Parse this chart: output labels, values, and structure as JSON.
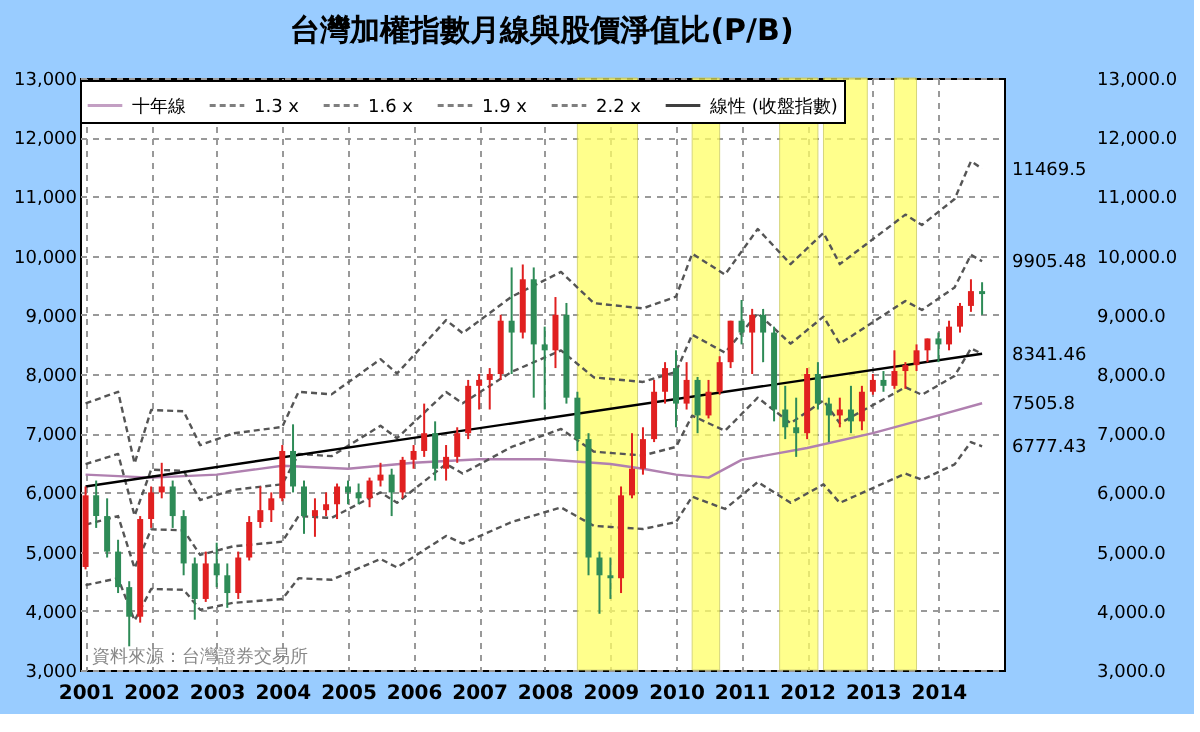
{
  "chart_data": {
    "type": "candlestick",
    "title": "台灣加權指數月線與股價淨值比(P/B)",
    "x": [
      "2001-01",
      "2001-03",
      "2001-05",
      "2001-07",
      "2001-09",
      "2001-11",
      "2002-01",
      "2002-03",
      "2002-05",
      "2002-07",
      "2002-09",
      "2002-11",
      "2003-01",
      "2003-03",
      "2003-05",
      "2003-07",
      "2003-09",
      "2003-11",
      "2004-01",
      "2004-03",
      "2004-05",
      "2004-07",
      "2004-09",
      "2004-11",
      "2005-01",
      "2005-03",
      "2005-05",
      "2005-07",
      "2005-09",
      "2005-11",
      "2006-01",
      "2006-03",
      "2006-05",
      "2006-07",
      "2006-09",
      "2006-11",
      "2007-01",
      "2007-03",
      "2007-05",
      "2007-07",
      "2007-09",
      "2007-11",
      "2008-01",
      "2008-03",
      "2008-05",
      "2008-07",
      "2008-09",
      "2008-11",
      "2009-01",
      "2009-03",
      "2009-05",
      "2009-07",
      "2009-09",
      "2009-11",
      "2010-01",
      "2010-03",
      "2010-05",
      "2010-07",
      "2010-09",
      "2010-11",
      "2011-01",
      "2011-03",
      "2011-05",
      "2011-07",
      "2011-09",
      "2011-11",
      "2012-01",
      "2012-03",
      "2012-05",
      "2012-07",
      "2012-09",
      "2012-11",
      "2013-01",
      "2013-03",
      "2013-05",
      "2013-07",
      "2013-09",
      "2013-11",
      "2014-01",
      "2014-03",
      "2014-05",
      "2014-07",
      "2014-09"
    ],
    "ohlc": [
      [
        4740,
        6100,
        4700,
        5950
      ],
      [
        5950,
        6200,
        5400,
        5600
      ],
      [
        5600,
        5900,
        4900,
        5000
      ],
      [
        5000,
        5200,
        4300,
        4400
      ],
      [
        4400,
        4500,
        3400,
        3900
      ],
      [
        3900,
        5600,
        3800,
        5550
      ],
      [
        5550,
        6100,
        5400,
        6000
      ],
      [
        6000,
        6500,
        5900,
        6100
      ],
      [
        6100,
        6200,
        5400,
        5600
      ],
      [
        5600,
        5700,
        4600,
        4800
      ],
      [
        4800,
        4900,
        3850,
        4200
      ],
      [
        4200,
        5000,
        4150,
        4800
      ],
      [
        4800,
        5150,
        4400,
        4600
      ],
      [
        4600,
        4800,
        4050,
        4300
      ],
      [
        4300,
        5000,
        4200,
        4900
      ],
      [
        4900,
        5600,
        4850,
        5500
      ],
      [
        5500,
        6100,
        5400,
        5700
      ],
      [
        5700,
        6000,
        5500,
        5900
      ],
      [
        5900,
        6800,
        5850,
        6700
      ],
      [
        6700,
        7150,
        6000,
        6100
      ],
      [
        6100,
        6200,
        5300,
        5600
      ],
      [
        5600,
        5900,
        5250,
        5700
      ],
      [
        5700,
        6000,
        5600,
        5800
      ],
      [
        5800,
        6150,
        5550,
        6100
      ],
      [
        6100,
        6200,
        5800,
        6000
      ],
      [
        6000,
        6150,
        5800,
        5900
      ],
      [
        5900,
        6250,
        5750,
        6200
      ],
      [
        6200,
        6500,
        6100,
        6300
      ],
      [
        6300,
        6400,
        5600,
        6000
      ],
      [
        6000,
        6600,
        5900,
        6550
      ],
      [
        6550,
        6800,
        6400,
        6700
      ],
      [
        6700,
        7500,
        6600,
        7000
      ],
      [
        7000,
        7200,
        6200,
        6400
      ],
      [
        6400,
        6800,
        6200,
        6600
      ],
      [
        6600,
        7100,
        6500,
        7000
      ],
      [
        7000,
        7900,
        6900,
        7800
      ],
      [
        7800,
        8000,
        7400,
        7900
      ],
      [
        7900,
        8100,
        7400,
        8000
      ],
      [
        8000,
        9000,
        7900,
        8900
      ],
      [
        8900,
        9800,
        8000,
        8700
      ],
      [
        8700,
        9850,
        8600,
        9600
      ],
      [
        9600,
        9800,
        7600,
        8500
      ],
      [
        8500,
        8800,
        7400,
        8400
      ],
      [
        8400,
        9300,
        8100,
        9000
      ],
      [
        9000,
        9200,
        7500,
        7600
      ],
      [
        7600,
        7700,
        6700,
        6900
      ],
      [
        6900,
        7000,
        4600,
        4900
      ],
      [
        4900,
        5000,
        3950,
        4600
      ],
      [
        4600,
        4900,
        4200,
        4550
      ],
      [
        4550,
        6100,
        4300,
        5950
      ],
      [
        5950,
        7000,
        5900,
        6400
      ],
      [
        6400,
        7100,
        6300,
        6900
      ],
      [
        6900,
        7900,
        6850,
        7700
      ],
      [
        7700,
        8200,
        7500,
        8100
      ],
      [
        8100,
        8400,
        7100,
        7500
      ],
      [
        7500,
        8200,
        7400,
        7900
      ],
      [
        7900,
        7950,
        7000,
        7300
      ],
      [
        7300,
        7900,
        7250,
        7700
      ],
      [
        7700,
        8300,
        7650,
        8200
      ],
      [
        8200,
        8900,
        8100,
        8900
      ],
      [
        8900,
        9250,
        8500,
        8700
      ],
      [
        8700,
        9100,
        8000,
        9000
      ],
      [
        9000,
        9100,
        8200,
        8700
      ],
      [
        8700,
        8800,
        7200,
        7400
      ],
      [
        7400,
        7800,
        6900,
        7100
      ],
      [
        7100,
        7600,
        6600,
        7000
      ],
      [
        7000,
        8100,
        6900,
        8000
      ],
      [
        8000,
        8200,
        7400,
        7500
      ],
      [
        7500,
        7600,
        6850,
        7300
      ],
      [
        7300,
        7600,
        7100,
        7400
      ],
      [
        7400,
        7800,
        7000,
        7200
      ],
      [
        7200,
        7800,
        7050,
        7700
      ],
      [
        7700,
        8000,
        7650,
        7900
      ],
      [
        7900,
        8050,
        7700,
        7800
      ],
      [
        7800,
        8400,
        7750,
        8050
      ],
      [
        8050,
        8200,
        7750,
        8150
      ],
      [
        8150,
        8500,
        8050,
        8400
      ],
      [
        8400,
        8600,
        8200,
        8600
      ],
      [
        8600,
        8700,
        8200,
        8500
      ],
      [
        8500,
        8900,
        8400,
        8800
      ],
      [
        8800,
        9200,
        8700,
        9150
      ],
      [
        9150,
        9600,
        9050,
        9400
      ],
      [
        9400,
        9550,
        9000,
        9350
      ]
    ],
    "series": [
      {
        "name": "十年線",
        "type": "line",
        "color": "#b080b0",
        "line_style": "solid",
        "x": [
          "2001-01",
          "2002-01",
          "2003-01",
          "2004-01",
          "2005-01",
          "2006-01",
          "2007-01",
          "2008-01",
          "2009-01",
          "2009-07",
          "2010-01",
          "2010-07",
          "2011-01",
          "2012-01",
          "2013-01",
          "2014-01",
          "2014-09"
        ],
        "values": [
          6300,
          6250,
          6300,
          6450,
          6400,
          6500,
          6560,
          6560,
          6480,
          6400,
          6300,
          6250,
          6550,
          6750,
          7000,
          7300,
          7505.8
        ]
      },
      {
        "name": "1.3 x",
        "type": "line",
        "color": "#555555",
        "line_style": "dashed",
        "x": [
          "2001-01",
          "2001-07",
          "2001-10",
          "2002-01",
          "2002-07",
          "2002-10",
          "2003-04",
          "2004-01",
          "2004-04",
          "2004-10",
          "2005-07",
          "2005-10",
          "2006-07",
          "2006-10",
          "2007-07",
          "2008-04",
          "2008-10",
          "2009-07",
          "2010-01",
          "2010-04",
          "2010-10",
          "2011-04",
          "2011-10",
          "2012-04",
          "2012-07",
          "2013-07",
          "2013-10",
          "2014-04",
          "2014-07",
          "2014-09"
        ],
        "values": [
          4433,
          4550,
          3835,
          4368,
          4355,
          4017,
          4134,
          4199,
          4550,
          4524,
          4875,
          4732,
          5265,
          5135,
          5499,
          5746,
          5434,
          5382,
          5499,
          5928,
          5720,
          6175,
          5824,
          6136,
          5824,
          6318,
          6214,
          6474,
          6851,
          6777.43
        ]
      },
      {
        "name": "1.6 x",
        "type": "line",
        "color": "#555555",
        "line_style": "dashed",
        "x": [
          "2001-01",
          "2001-07",
          "2001-10",
          "2002-01",
          "2002-07",
          "2002-10",
          "2003-04",
          "2004-01",
          "2004-04",
          "2004-10",
          "2005-07",
          "2005-10",
          "2006-07",
          "2006-10",
          "2007-07",
          "2008-04",
          "2008-10",
          "2009-07",
          "2010-01",
          "2010-04",
          "2010-10",
          "2011-04",
          "2011-10",
          "2012-04",
          "2012-07",
          "2013-07",
          "2013-10",
          "2014-04",
          "2014-07",
          "2014-09"
        ],
        "values": [
          5456,
          5600,
          4720,
          5376,
          5360,
          4944,
          5088,
          5168,
          5600,
          5568,
          6000,
          5824,
          6480,
          6320,
          6768,
          7072,
          6688,
          6624,
          6768,
          7296,
          7040,
          7600,
          7168,
          7552,
          7168,
          7776,
          7648,
          7968,
          8432,
          8341.46
        ]
      },
      {
        "name": "1.9 x",
        "type": "line",
        "color": "#555555",
        "line_style": "dashed",
        "x": [
          "2001-01",
          "2001-07",
          "2001-10",
          "2002-01",
          "2002-07",
          "2002-10",
          "2003-04",
          "2004-01",
          "2004-04",
          "2004-10",
          "2005-07",
          "2005-10",
          "2006-07",
          "2006-10",
          "2007-07",
          "2008-04",
          "2008-10",
          "2009-07",
          "2010-01",
          "2010-04",
          "2010-10",
          "2011-04",
          "2011-10",
          "2012-04",
          "2012-07",
          "2013-07",
          "2013-10",
          "2014-04",
          "2014-07",
          "2014-09"
        ],
        "values": [
          6479,
          6650,
          5605,
          6384,
          6365,
          5871,
          6042,
          6137,
          6650,
          6612,
          7125,
          6916,
          7695,
          7505,
          8037,
          8398,
          7942,
          7866,
          8037,
          8664,
          8360,
          9025,
          8512,
          8968,
          8512,
          9234,
          9082,
          9462,
          10013,
          9905.48
        ]
      },
      {
        "name": "2.2 x",
        "type": "line",
        "color": "#555555",
        "line_style": "dashed",
        "x": [
          "2001-01",
          "2001-07",
          "2001-10",
          "2002-01",
          "2002-07",
          "2002-10",
          "2003-04",
          "2004-01",
          "2004-04",
          "2004-10",
          "2005-07",
          "2005-10",
          "2006-07",
          "2006-10",
          "2007-07",
          "2008-04",
          "2008-10",
          "2009-07",
          "2010-01",
          "2010-04",
          "2010-10",
          "2011-04",
          "2011-10",
          "2012-04",
          "2012-07",
          "2013-07",
          "2013-10",
          "2014-04",
          "2014-07",
          "2014-09"
        ],
        "values": [
          7502,
          7700,
          6490,
          7392,
          7370,
          6798,
          6996,
          7106,
          7700,
          7656,
          8250,
          8008,
          8910,
          8690,
          9306,
          9724,
          9196,
          9108,
          9306,
          10032,
          9680,
          10450,
          9856,
          10384,
          9856,
          10692,
          10516,
          10956,
          11594,
          11469.5
        ]
      },
      {
        "name": "線性 (收盤指數)",
        "type": "line",
        "color": "#000000",
        "line_style": "solid",
        "x": [
          "2001-01",
          "2014-09"
        ],
        "values": [
          6100,
          8341.46
        ]
      }
    ],
    "bands": [
      {
        "axis": "x",
        "from": "2008-07",
        "to": "2009-06",
        "color": "#ffff66"
      },
      {
        "axis": "x",
        "from": "2010-04",
        "to": "2010-09",
        "color": "#ffff66"
      },
      {
        "axis": "x",
        "from": "2011-08",
        "to": "2012-03",
        "color": "#ffff66"
      },
      {
        "axis": "x",
        "from": "2012-04",
        "to": "2012-12",
        "color": "#ffff66"
      },
      {
        "axis": "x",
        "from": "2013-05",
        "to": "2013-09",
        "color": "#ffff66"
      }
    ],
    "annotations": [
      {
        "text": "11469.5",
        "x": "2014-09",
        "y": 11469.5
      },
      {
        "text": "9905.48",
        "x": "2014-09",
        "y": 9905.48
      },
      {
        "text": "8341.46",
        "x": "2014-09",
        "y": 8341.46
      },
      {
        "text": "7505.8",
        "x": "2014-09",
        "y": 7505.8
      },
      {
        "text": "6777.43",
        "x": "2014-09",
        "y": 6777.43
      },
      "資料來源：台灣證券交易所"
    ],
    "xlim": [
      "2000-12",
      "2015-01"
    ],
    "xticks": [
      "2001",
      "2002",
      "2003",
      "2004",
      "2005",
      "2006",
      "2007",
      "2008",
      "2009",
      "2010",
      "2011",
      "2012",
      "2013",
      "2014"
    ],
    "ylim": [
      3000,
      13000
    ],
    "yticks": [
      {
        "value": 3000,
        "label": "3,000"
      },
      {
        "value": 4000,
        "label": "4,000"
      },
      {
        "value": 5000,
        "label": "5,000"
      },
      {
        "value": 6000,
        "label": "6,000"
      },
      {
        "value": 7000,
        "label": "7,000"
      },
      {
        "value": 8000,
        "label": "8,000"
      },
      {
        "value": 9000,
        "label": "9,000"
      },
      {
        "value": 10000,
        "label": "10,000"
      },
      {
        "value": 11000,
        "label": "11,000"
      },
      {
        "value": 12000,
        "label": "12,000"
      },
      {
        "value": 13000,
        "label": "13,000"
      }
    ],
    "y2lim": [
      3000,
      13000
    ],
    "y2ticks": [
      {
        "value": 3000,
        "label": "3,000.0"
      },
      {
        "value": 4000,
        "label": "4,000.0"
      },
      {
        "value": 5000,
        "label": "5,000.0"
      },
      {
        "value": 6000,
        "label": "6,000.0"
      },
      {
        "value": 7000,
        "label": "7,000.0"
      },
      {
        "value": 8000,
        "label": "8,000.0"
      },
      {
        "value": 9000,
        "label": "9,000.0"
      },
      {
        "value": 10000,
        "label": "10,000.0"
      },
      {
        "value": 11000,
        "label": "11,000.0"
      },
      {
        "value": 12000,
        "label": "12,000.0"
      },
      {
        "value": 13000,
        "label": "13,000.0"
      }
    ],
    "grid": true,
    "legend": "top"
  }
}
